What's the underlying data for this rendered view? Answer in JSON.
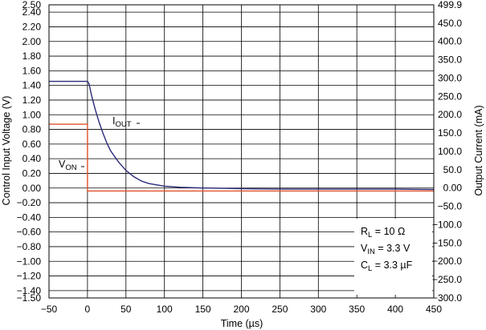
{
  "chart_data": {
    "type": "line",
    "xlabel": "Time (µs)",
    "ylabel_left": "Control Input Voltage (V)",
    "ylabel_right": "Output Current (mA)",
    "xlim": [
      -50,
      450
    ],
    "ylim_left": [
      -1.5,
      2.5
    ],
    "ylim_right": [
      -300.0,
      499.9
    ],
    "x_ticks": [
      "−50",
      "0",
      "50",
      "100",
      "150",
      "200",
      "250",
      "300",
      "350",
      "400",
      "450"
    ],
    "y_left_ticks": [
      "2.50",
      "2.40",
      "2.20",
      "2.00",
      "1.80",
      "1.60",
      "1.40",
      "1.20",
      "1.00",
      "0.80",
      "0.60",
      "0.40",
      "0.20",
      "0.00",
      "−0.20",
      "−0.40",
      "−0.60",
      "−0.80",
      "−1.00",
      "−1.20",
      "−1.40",
      "−1.50"
    ],
    "y_right_ticks": [
      "499.9",
      "450.0",
      "400.0",
      "350.0",
      "300.0",
      "250.0",
      "200.0",
      "150.0",
      "100.0",
      "50.0",
      "0.00",
      "−50.0",
      "−100.0",
      "−150.0",
      "−200.0",
      "−250.0",
      "−300.0"
    ],
    "grid": true,
    "series": [
      {
        "name": "VON",
        "axis": "left",
        "color": "#e0502a",
        "x": [
          -50,
          0,
          0,
          50,
          100,
          150,
          200,
          250,
          300,
          350,
          400,
          450
        ],
        "y": [
          0.87,
          0.87,
          -0.04,
          -0.04,
          -0.04,
          -0.04,
          -0.04,
          -0.04,
          -0.04,
          -0.04,
          -0.04,
          -0.04
        ]
      },
      {
        "name": "IOUT",
        "axis": "right",
        "color": "#2b2a7a",
        "x": [
          -50,
          0,
          2,
          5,
          10,
          15,
          20,
          25,
          30,
          40,
          50,
          60,
          70,
          80,
          100,
          120,
          150,
          200,
          250,
          300,
          350,
          400,
          450
        ],
        "y": [
          291,
          291,
          285,
          255,
          215,
          180,
          150,
          124,
          102,
          72,
          48,
          31,
          19,
          12,
          5,
          2,
          0,
          -2,
          -3,
          -3,
          -3,
          -3,
          -4
        ]
      }
    ]
  },
  "labels": {
    "iout_main": "I",
    "iout_sub": "OUT",
    "von_main": "V",
    "von_sub": "ON"
  },
  "notes": {
    "rl_main": "R",
    "rl_sub": "L",
    "rl_rest": " = 10 Ω",
    "vin_main": "V",
    "vin_sub": "IN",
    "vin_rest": " = 3.3 V",
    "cl_main": "C",
    "cl_sub": "L",
    "cl_rest": " = 3.3 µF"
  }
}
